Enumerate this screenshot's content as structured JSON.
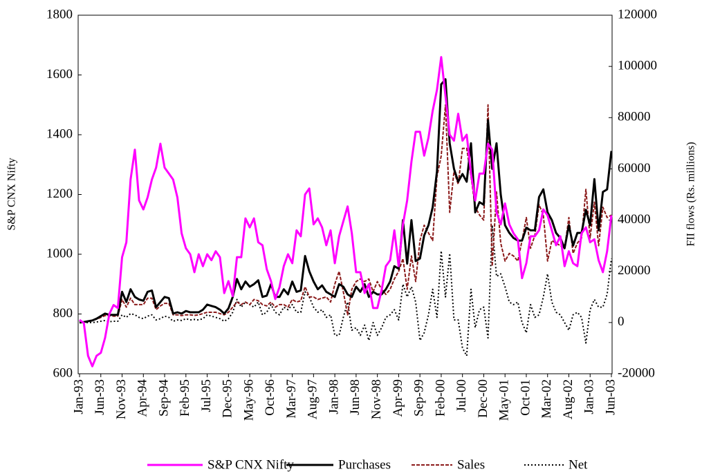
{
  "chart_data": {
    "type": "line",
    "categories": [
      "Jan-93",
      null,
      null,
      null,
      null,
      "Jun-93",
      null,
      null,
      null,
      null,
      "Nov-93",
      null,
      null,
      null,
      null,
      "Apr-94",
      null,
      null,
      null,
      null,
      "Sep-94",
      null,
      null,
      null,
      null,
      "Feb-95",
      null,
      null,
      null,
      null,
      "Jul-95",
      null,
      null,
      null,
      null,
      "Dec-95",
      null,
      null,
      null,
      null,
      "May-96",
      null,
      null,
      null,
      null,
      "Oct-96",
      null,
      null,
      null,
      null,
      "Mar-97",
      null,
      null,
      null,
      null,
      "Aug-97",
      null,
      null,
      null,
      null,
      "Jan-98",
      null,
      null,
      null,
      null,
      "Jun-98",
      null,
      null,
      null,
      null,
      "Nov-98",
      null,
      null,
      null,
      null,
      "Apr-99",
      null,
      null,
      null,
      null,
      "Sep-99",
      null,
      null,
      null,
      null,
      "Feb-00",
      null,
      null,
      null,
      null,
      "Jul-00",
      null,
      null,
      null,
      null,
      "Dec-00",
      null,
      null,
      null,
      null,
      "May-01",
      null,
      null,
      null,
      null,
      "Oct-01",
      null,
      null,
      null,
      null,
      "Mar-02",
      null,
      null,
      null,
      null,
      "Aug-02",
      null,
      null,
      null,
      null,
      "Jan-03",
      null,
      null,
      null,
      null,
      "Jun-03"
    ],
    "y_label": "S&P CNX Nifty",
    "y2_label": "FII flows (Rs. millions)",
    "ylim": [
      600,
      1800
    ],
    "yticks": [
      600,
      800,
      1000,
      1200,
      1400,
      1600,
      1800
    ],
    "y2lim": [
      -20000,
      120000
    ],
    "y2ticks": [
      -20000,
      0,
      20000,
      40000,
      60000,
      80000,
      100000,
      120000
    ],
    "series": [
      {
        "name": "S&P CNX Nifty",
        "color": "#ff00ff",
        "style": "solid",
        "width": 3,
        "axis": "y",
        "values": [
          780,
          770,
          660,
          625,
          660,
          670,
          720,
          800,
          830,
          820,
          990,
          1040,
          1250,
          1350,
          1180,
          1150,
          1190,
          1250,
          1290,
          1370,
          1290,
          1270,
          1250,
          1190,
          1070,
          1020,
          1000,
          940,
          1000,
          960,
          1000,
          980,
          1010,
          990,
          870,
          910,
          860,
          990,
          990,
          1120,
          1090,
          1120,
          1040,
          1030,
          950,
          910,
          850,
          890,
          960,
          1000,
          970,
          1080,
          1060,
          1200,
          1220,
          1100,
          1120,
          1090,
          1030,
          1080,
          970,
          1060,
          1110,
          1160,
          1070,
          940,
          940,
          870,
          900,
          820,
          820,
          880,
          960,
          980,
          1080,
          960,
          1100,
          1180,
          1310,
          1410,
          1410,
          1330,
          1390,
          1480,
          1550,
          1660,
          1530,
          1400,
          1380,
          1470,
          1380,
          1400,
          1270,
          1180,
          1270,
          1270,
          1370,
          1350,
          1140,
          1100,
          1170,
          1100,
          1070,
          1050,
          920,
          970,
          1060,
          1060,
          1080,
          1150,
          1130,
          1080,
          1030,
          1060,
          960,
          1010,
          970,
          960,
          1070,
          1090,
          1040,
          1050,
          980,
          940,
          1010,
          1130
        ]
      },
      {
        "name": "Purchases",
        "color": "#000000",
        "style": "solid",
        "width": 3,
        "axis": "y2",
        "values": [
          0,
          200,
          500,
          800,
          1500,
          2500,
          3500,
          3000,
          3000,
          3000,
          12000,
          8000,
          13000,
          10000,
          9000,
          8500,
          12000,
          12500,
          6000,
          8000,
          10000,
          9500,
          3500,
          4000,
          3500,
          4500,
          4000,
          4000,
          4000,
          5000,
          7000,
          6500,
          6000,
          5000,
          3500,
          5500,
          10000,
          17000,
          13000,
          16000,
          14000,
          15000,
          16500,
          10000,
          10500,
          15000,
          10000,
          10000,
          13000,
          11000,
          16000,
          12000,
          12500,
          26000,
          20000,
          16000,
          13000,
          14500,
          12000,
          11000,
          10000,
          15000,
          14000,
          11000,
          10000,
          14000,
          12000,
          15000,
          10000,
          12000,
          11000,
          11000,
          13000,
          16000,
          22000,
          21000,
          40000,
          23000,
          40000,
          24000,
          25000,
          34000,
          38000,
          45000,
          59000,
          93000,
          95000,
          70000,
          60000,
          55000,
          58000,
          55000,
          70000,
          43000,
          47000,
          46000,
          79000,
          60000,
          70000,
          50000,
          38000,
          35000,
          33000,
          32000,
          32000,
          37000,
          36000,
          36000,
          49000,
          52000,
          43000,
          40000,
          35000,
          33000,
          29000,
          38000,
          30000,
          35000,
          35000,
          44000,
          38000,
          56000,
          36000,
          51000,
          52000,
          67000
        ]
      },
      {
        "name": "Sales",
        "color": "#8b1a1a",
        "style": "dashed",
        "width": 2,
        "axis": "y2",
        "values": [
          0,
          200,
          500,
          800,
          1300,
          2000,
          2700,
          2700,
          2500,
          2500,
          9000,
          6000,
          9500,
          7000,
          7000,
          7000,
          9500,
          9500,
          5000,
          6500,
          7500,
          7500,
          3000,
          3000,
          2700,
          3000,
          3000,
          2800,
          3000,
          3500,
          4000,
          4000,
          4000,
          3500,
          3000,
          4000,
          6000,
          8000,
          7000,
          8000,
          7000,
          9000,
          8500,
          7000,
          6500,
          8000,
          6000,
          7000,
          7000,
          6000,
          9000,
          8000,
          8500,
          14000,
          10000,
          10000,
          9000,
          9500,
          10000,
          8000,
          15000,
          20000,
          12000,
          3000,
          13000,
          16000,
          17000,
          16000,
          17000,
          12000,
          16000,
          13000,
          11000,
          13000,
          17000,
          20000,
          25000,
          13000,
          26000,
          16000,
          32000,
          38000,
          35000,
          32000,
          57000,
          65000,
          85000,
          43000,
          59000,
          54000,
          68000,
          68000,
          57000,
          45000,
          42000,
          40000,
          85000,
          22000,
          51000,
          31000,
          24000,
          27000,
          26000,
          24000,
          32000,
          41000,
          29000,
          34000,
          46000,
          42000,
          24000,
          32000,
          31000,
          30000,
          29000,
          41000,
          27000,
          31000,
          33000,
          52000,
          33000,
          47000,
          30000,
          45000,
          41000,
          42000
        ]
      },
      {
        "name": "Net",
        "color": "#000000",
        "style": "dotted",
        "width": 2,
        "axis": "y2",
        "values": [
          0,
          0,
          0,
          0,
          200,
          500,
          800,
          300,
          500,
          500,
          3000,
          2000,
          3500,
          3000,
          2000,
          1500,
          2500,
          3000,
          1000,
          1500,
          2500,
          2000,
          500,
          1000,
          800,
          1500,
          1000,
          1200,
          1000,
          1500,
          3000,
          2500,
          2000,
          1500,
          500,
          1500,
          4000,
          9000,
          6000,
          8000,
          7000,
          6000,
          8000,
          3000,
          4000,
          7000,
          4000,
          3000,
          6000,
          5000,
          7000,
          4000,
          4000,
          12000,
          10000,
          6000,
          4000,
          5000,
          2000,
          3000,
          -5000,
          -5000,
          2000,
          8000,
          -3000,
          -2000,
          -5000,
          -1000,
          -7000,
          0,
          -5000,
          -2000,
          2000,
          3000,
          5000,
          1000,
          15000,
          10000,
          14000,
          8000,
          -7000,
          -4000,
          3000,
          13000,
          2000,
          28000,
          10000,
          27000,
          1000,
          1000,
          -10000,
          -13000,
          13000,
          -2000,
          5000,
          6000,
          -6000,
          38000,
          18000,
          19000,
          14000,
          8000,
          7000,
          8000,
          0,
          -4000,
          7000,
          2000,
          3000,
          10000,
          19000,
          8000,
          4000,
          3000,
          0,
          -3000,
          3000,
          4000,
          2000,
          -8000,
          5000,
          9000,
          6000,
          6000,
          11000,
          25000
        ]
      }
    ]
  }
}
